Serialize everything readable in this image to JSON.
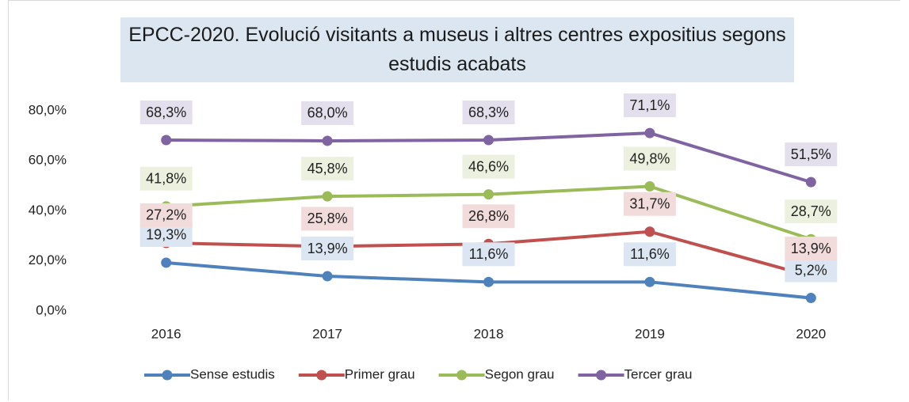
{
  "chart_data": {
    "type": "line",
    "title": "EPCC-2020. Evolució visitants a museus i altres centres expositius segons estudis acabats",
    "categories": [
      "2016",
      "2017",
      "2018",
      "2019",
      "2020"
    ],
    "ylim": [
      0,
      80
    ],
    "yticks": [
      {
        "value": 0,
        "label": "0,0%"
      },
      {
        "value": 20,
        "label": "20,0%"
      },
      {
        "value": 40,
        "label": "40,0%"
      },
      {
        "value": 60,
        "label": "60,0%"
      },
      {
        "value": 80,
        "label": "80,0%"
      }
    ],
    "grid": false,
    "legend": "bottom",
    "series": [
      {
        "name": "Sense estudis",
        "color": "#4f81bd",
        "label_bg": "#dce6f2",
        "values": [
          19.3,
          13.9,
          11.6,
          11.6,
          5.2
        ],
        "value_labels": [
          "19,3%",
          "13,9%",
          "11,6%",
          "11,6%",
          "5,2%"
        ]
      },
      {
        "name": "Primer grau",
        "color": "#c0504d",
        "label_bg": "#f2dcdb",
        "values": [
          27.2,
          25.8,
          26.8,
          31.7,
          13.9
        ],
        "value_labels": [
          "27,2%",
          "25,8%",
          "26,8%",
          "31,7%",
          "13,9%"
        ]
      },
      {
        "name": "Segon grau",
        "color": "#9bbb59",
        "label_bg": "#ebf1de",
        "values": [
          41.8,
          45.8,
          46.6,
          49.8,
          28.7
        ],
        "value_labels": [
          "41,8%",
          "45,8%",
          "46,6%",
          "49,8%",
          "28,7%"
        ]
      },
      {
        "name": "Tercer grau",
        "color": "#8064a2",
        "label_bg": "#e4dfec",
        "values": [
          68.3,
          68.0,
          68.3,
          71.1,
          51.5
        ],
        "value_labels": [
          "68,3%",
          "68,0%",
          "68,3%",
          "71,1%",
          "51,5%"
        ]
      }
    ]
  }
}
